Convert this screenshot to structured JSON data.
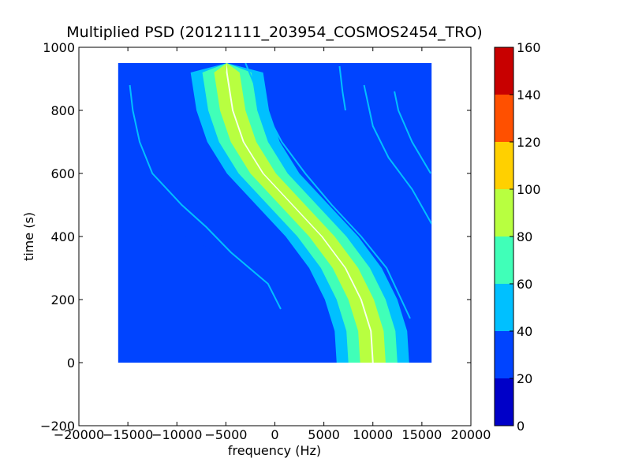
{
  "chart_data": {
    "type": "heatmap",
    "title": "Multiplied PSD (20121111_203954_COSMOS2454_TRO)",
    "xlabel": "frequency (Hz)",
    "ylabel": "time (s)",
    "xlim": [
      -20000,
      20000
    ],
    "ylim": [
      -200,
      1000
    ],
    "x_ticks": [
      -20000,
      -15000,
      -10000,
      -5000,
      0,
      5000,
      10000,
      15000,
      20000
    ],
    "x_tick_labels": [
      "−20000",
      "−15000",
      "−10000",
      "−5000",
      "0",
      "5000",
      "10000",
      "15000",
      "20000"
    ],
    "y_ticks": [
      -200,
      0,
      200,
      400,
      600,
      800,
      1000
    ],
    "y_tick_labels": [
      "−200",
      "0",
      "200",
      "400",
      "600",
      "800",
      "1000"
    ],
    "data_extent": {
      "x": [
        -16000,
        16000
      ],
      "y": [
        0,
        950
      ]
    },
    "background_level": 30,
    "main_trace": {
      "description_free": true,
      "points": [
        {
          "t": 0,
          "f": 10000
        },
        {
          "t": 100,
          "f": 9800
        },
        {
          "t": 200,
          "f": 8800
        },
        {
          "t": 300,
          "f": 7200
        },
        {
          "t": 400,
          "f": 4800
        },
        {
          "t": 500,
          "f": 1800
        },
        {
          "t": 600,
          "f": -1200
        },
        {
          "t": 700,
          "f": -3200
        },
        {
          "t": 800,
          "f": -4300
        },
        {
          "t": 900,
          "f": -4800
        },
        {
          "t": 920,
          "f": -4900
        }
      ],
      "bands": [
        {
          "half_width_hz": 3700,
          "level": 50
        },
        {
          "half_width_hz": 2500,
          "level": 70
        },
        {
          "half_width_hz": 1300,
          "level": 90
        },
        {
          "half_width_hz": 80,
          "level": 100
        }
      ]
    },
    "side_traces": [
      {
        "level": 50,
        "points": [
          {
            "t": 140,
            "f": 13800
          },
          {
            "t": 300,
            "f": 11400
          },
          {
            "t": 400,
            "f": 8800
          },
          {
            "t": 500,
            "f": 5800
          },
          {
            "t": 600,
            "f": 3100
          },
          {
            "t": 700,
            "f": 700
          },
          {
            "t": 800,
            "f": -1000
          },
          {
            "t": 950,
            "f": -3000
          }
        ]
      },
      {
        "level": 45,
        "points": [
          {
            "t": 440,
            "f": 16000
          },
          {
            "t": 550,
            "f": 14000
          },
          {
            "t": 650,
            "f": 11600
          },
          {
            "t": 750,
            "f": 10000
          },
          {
            "t": 880,
            "f": 9100
          }
        ]
      },
      {
        "level": 45,
        "points": [
          {
            "t": 600,
            "f": 15900
          },
          {
            "t": 700,
            "f": 14000
          },
          {
            "t": 800,
            "f": 12600
          },
          {
            "t": 860,
            "f": 12200
          }
        ]
      },
      {
        "level": 45,
        "points": [
          {
            "t": 800,
            "f": 7200
          },
          {
            "t": 860,
            "f": 6900
          },
          {
            "t": 940,
            "f": 6600
          }
        ]
      },
      {
        "level": 40,
        "points": [
          {
            "t": 170,
            "f": 600
          },
          {
            "t": 250,
            "f": -700
          },
          {
            "t": 350,
            "f": -4500
          },
          {
            "t": 430,
            "f": -7000
          },
          {
            "t": 500,
            "f": -9500
          },
          {
            "t": 600,
            "f": -12500
          },
          {
            "t": 700,
            "f": -13800
          },
          {
            "t": 800,
            "f": -14500
          },
          {
            "t": 880,
            "f": -14800
          }
        ]
      },
      {
        "level": 38,
        "points": [
          {
            "t": 220,
            "f": -500
          },
          {
            "t": 300,
            "f": -3000
          },
          {
            "t": 380,
            "f": -8000
          },
          {
            "t": 440,
            "f": -12000
          },
          {
            "t": 480,
            "f": -15500
          }
        ]
      }
    ],
    "colorbar": {
      "ticks": [
        0,
        20,
        40,
        60,
        80,
        100,
        120,
        140,
        160
      ],
      "tick_labels": [
        "0",
        "20",
        "40",
        "60",
        "80",
        "100",
        "120",
        "140",
        "160"
      ],
      "levels": [
        0,
        20,
        40,
        60,
        80,
        100,
        120,
        140,
        160
      ],
      "colors": [
        "#0000c8",
        "#0044ff",
        "#00c0ff",
        "#40ffb8",
        "#b8ff40",
        "#ffd000",
        "#ff5000",
        "#c80000"
      ]
    }
  }
}
